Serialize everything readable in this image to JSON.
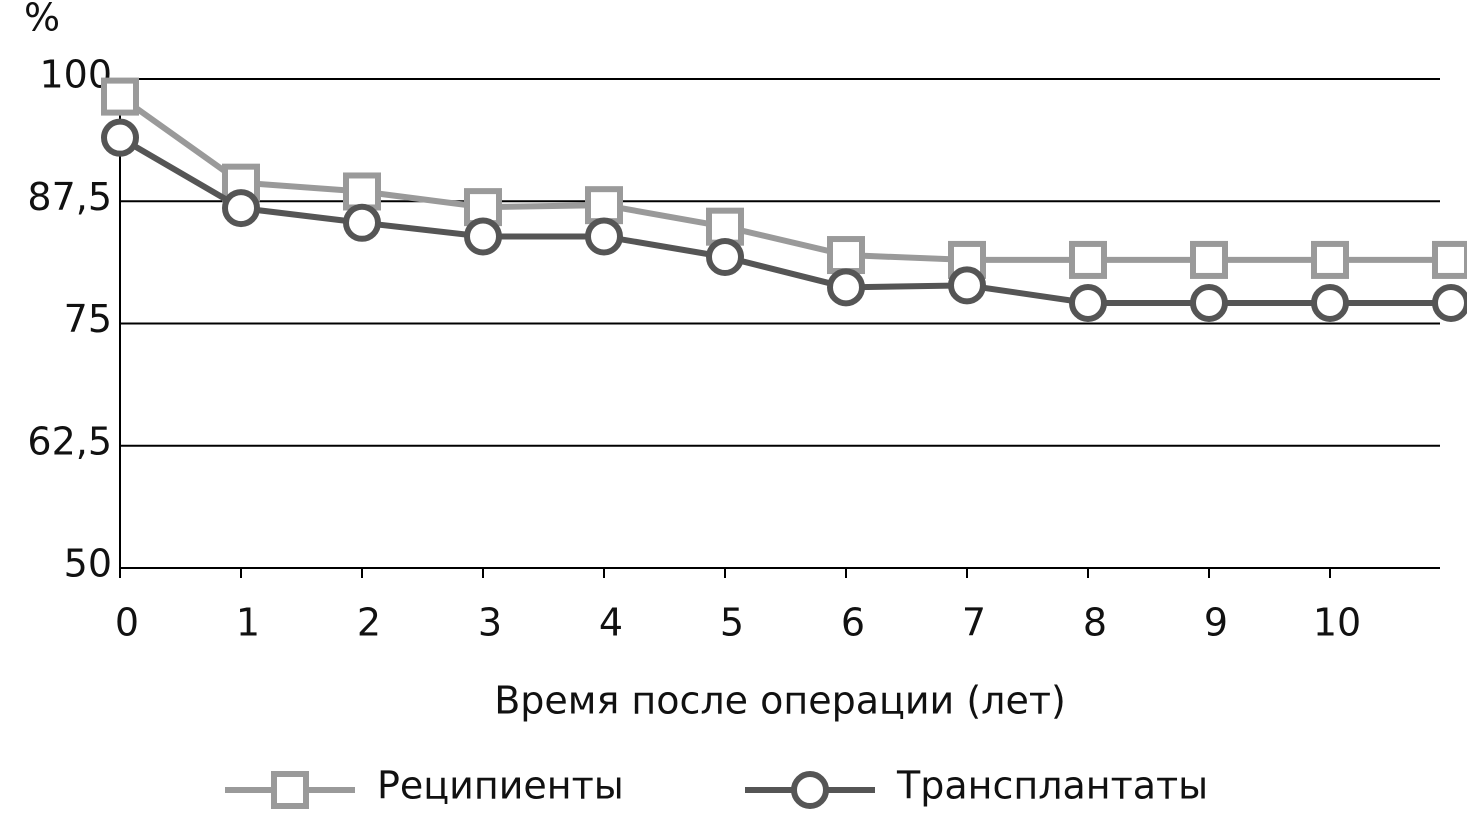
{
  "chart_data": {
    "type": "line",
    "y_label": "%",
    "x_label": "Время после операции (лет)",
    "categories": [
      "0",
      "1",
      "2",
      "3",
      "4",
      "5",
      "6",
      "7",
      "8",
      "9",
      "10",
      null
    ],
    "series": [
      {
        "name": "Реципиенты",
        "color": "#9a9a9a",
        "marker": "square",
        "values": [
          98.2,
          89.4,
          88.5,
          86.9,
          87.1,
          84.9,
          82.0,
          81.5,
          81.5,
          81.5,
          81.5,
          81.5
        ]
      },
      {
        "name": "Трансплантаты",
        "color": "#555555",
        "marker": "circle",
        "values": [
          94.0,
          86.8,
          85.3,
          83.9,
          83.9,
          81.8,
          78.7,
          78.9,
          77.1,
          77.1,
          77.1,
          77.1
        ]
      }
    ],
    "ylim": [
      50,
      100
    ],
    "yticks": [
      50,
      {
        "value": 62.5,
        "label": "62,5"
      },
      75,
      {
        "value": 87.5,
        "label": "87,5"
      },
      100
    ],
    "grid": true,
    "legend": "bottom"
  }
}
